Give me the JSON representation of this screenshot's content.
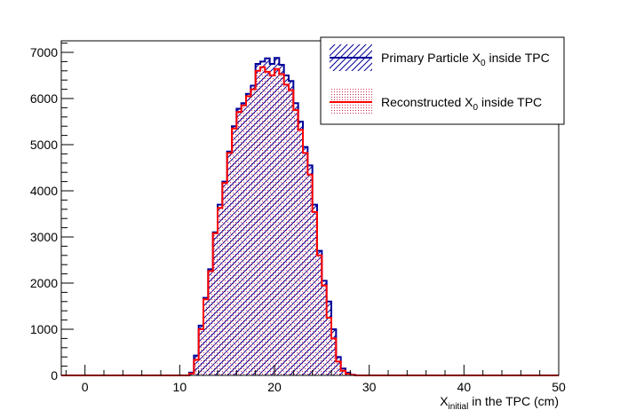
{
  "chart_data": {
    "type": "histogram",
    "xlabel": "X",
    "xlabel_sub": "initial",
    "xlabel_rest": " in the TPC (cm)",
    "xlim": [
      -2.5,
      50
    ],
    "ylim": [
      0,
      7250
    ],
    "x_ticks": [
      0,
      10,
      20,
      30,
      40,
      50
    ],
    "y_ticks": [
      0,
      1000,
      2000,
      3000,
      4000,
      5000,
      6000,
      7000
    ],
    "bin_edges_start": 11.0,
    "bin_width": 0.5,
    "legend_position": "top-right",
    "series": [
      {
        "name": "Primary Particle X",
        "name_sub": "0",
        "name_rest": " inside TPC",
        "color": "#000099",
        "fill": "hatch",
        "values": [
          60,
          430,
          1080,
          1680,
          2300,
          3100,
          3700,
          4200,
          4850,
          5400,
          5780,
          5900,
          6100,
          6280,
          6750,
          6800,
          6870,
          6750,
          6880,
          6730,
          6500,
          6380,
          5900,
          5500,
          4950,
          4550,
          3700,
          2700,
          2050,
          1600,
          1000,
          400,
          150,
          60,
          15
        ]
      },
      {
        "name": "Reconstructed X",
        "name_sub": "0",
        "name_rest": " inside TPC",
        "color": "#ff0000",
        "fill": "dots",
        "values": [
          40,
          340,
          1000,
          1650,
          2260,
          3080,
          3630,
          4170,
          4820,
          5350,
          5710,
          5850,
          6050,
          6200,
          6600,
          6680,
          6580,
          6500,
          6640,
          6530,
          6300,
          6180,
          5750,
          5320,
          4820,
          4350,
          3540,
          2600,
          1950,
          1250,
          800,
          300,
          100,
          35,
          10
        ]
      }
    ]
  }
}
